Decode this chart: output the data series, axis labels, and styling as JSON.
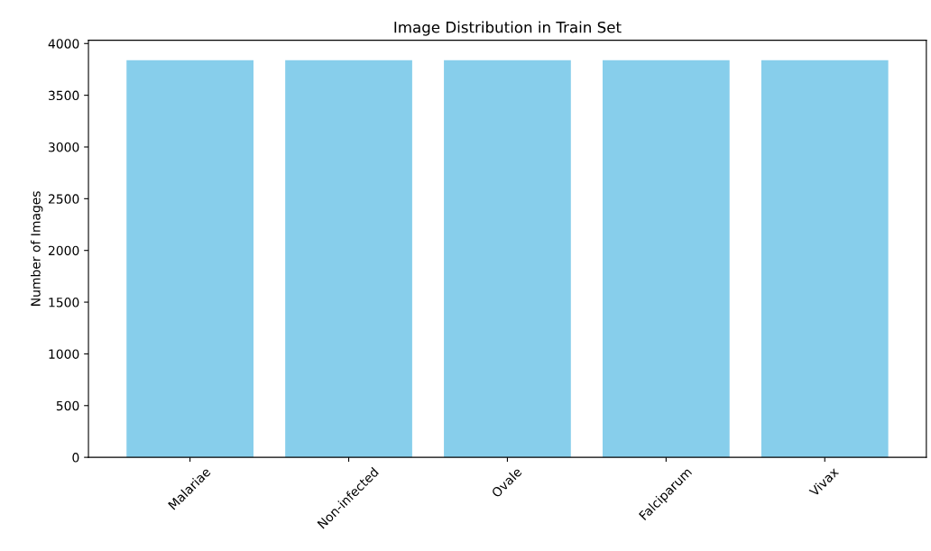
{
  "chart_data": {
    "type": "bar",
    "title": "Image Distribution in Train Set",
    "ylabel": "Number of Images",
    "categories": [
      "Malariae",
      "Non-infected",
      "Ovale",
      "Falciparum",
      "Vivax"
    ],
    "values": [
      3840,
      3840,
      3840,
      3840,
      3840
    ],
    "color": "#87ceeb",
    "ylim": [
      0,
      4032
    ],
    "yticks": [
      0,
      500,
      1000,
      1500,
      2000,
      2500,
      3000,
      3500,
      4000
    ],
    "grid": false,
    "legend": false
  }
}
